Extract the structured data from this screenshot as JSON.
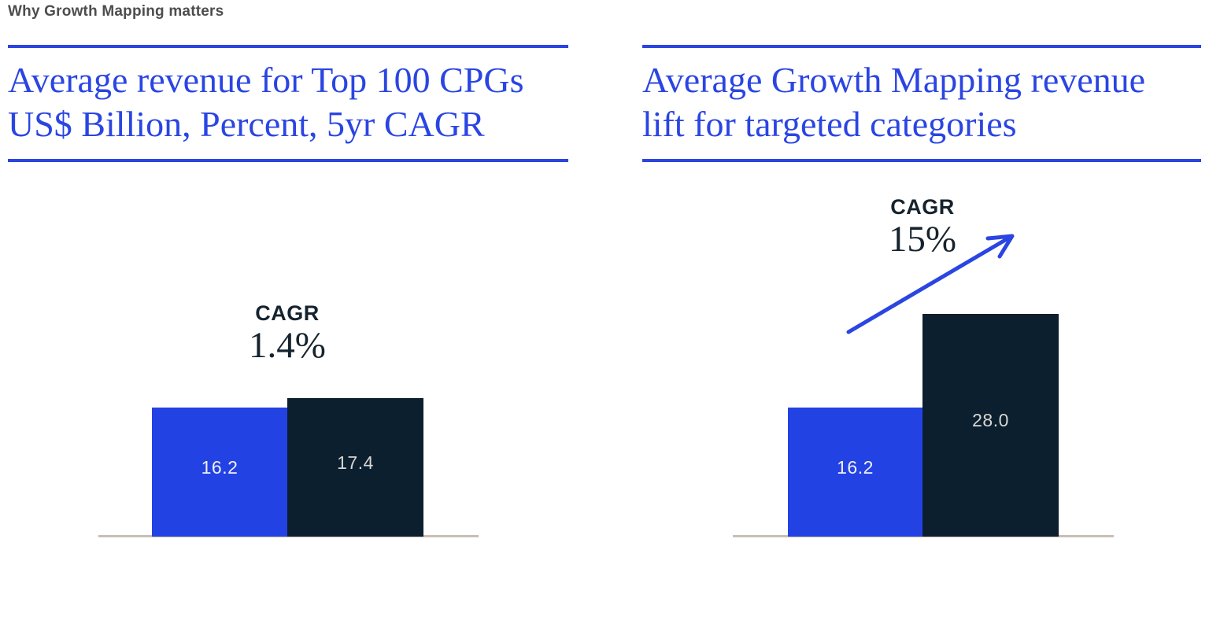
{
  "page": {
    "eyebrow": "Why Growth Mapping matters"
  },
  "panels": [
    {
      "title_lines": [
        "Average revenue for Top 100 CPGs",
        "US$ Billion, Percent, 5yr CAGR"
      ],
      "cagr_label": "CAGR",
      "cagr_value": "1.4%"
    },
    {
      "title_lines": [
        "Average Growth Mapping revenue",
        "lift for targeted categories"
      ],
      "cagr_label": "CAGR",
      "cagr_value": "15%"
    }
  ],
  "chart_data": [
    {
      "type": "bar",
      "title": "Average revenue for Top 100 CPGs",
      "subtitle": "US$ Billion, Percent, 5yr CAGR",
      "values": [
        16.2,
        17.4
      ],
      "data_labels": [
        "16.2",
        "17.4"
      ],
      "annotation": {
        "label": "CAGR",
        "value": "1.4%"
      },
      "bar_colors": [
        "#2342E4",
        "#0B1F2E"
      ],
      "xlabel": "",
      "ylabel": "",
      "gridlines": false,
      "baseline_axis": true,
      "legend": false
    },
    {
      "type": "bar",
      "title": "Average Growth Mapping revenue lift for targeted categories",
      "subtitle": "",
      "values": [
        16.2,
        28.0
      ],
      "data_labels": [
        "16.2",
        "28.0"
      ],
      "annotation": {
        "label": "CAGR",
        "value": "15%",
        "arrow": "up-right"
      },
      "bar_colors": [
        "#2342E4",
        "#0B1F2E"
      ],
      "xlabel": "",
      "ylabel": "",
      "gridlines": false,
      "baseline_axis": true,
      "legend": false
    }
  ],
  "colors": {
    "accent_blue": "#2A45E2",
    "bar_blue": "#2342E4",
    "bar_navy": "#0B1F2E",
    "baseline_gray": "#C9BFB5",
    "cagr_text": "#15232E",
    "eyebrow_gray": "#4D4D4D"
  }
}
